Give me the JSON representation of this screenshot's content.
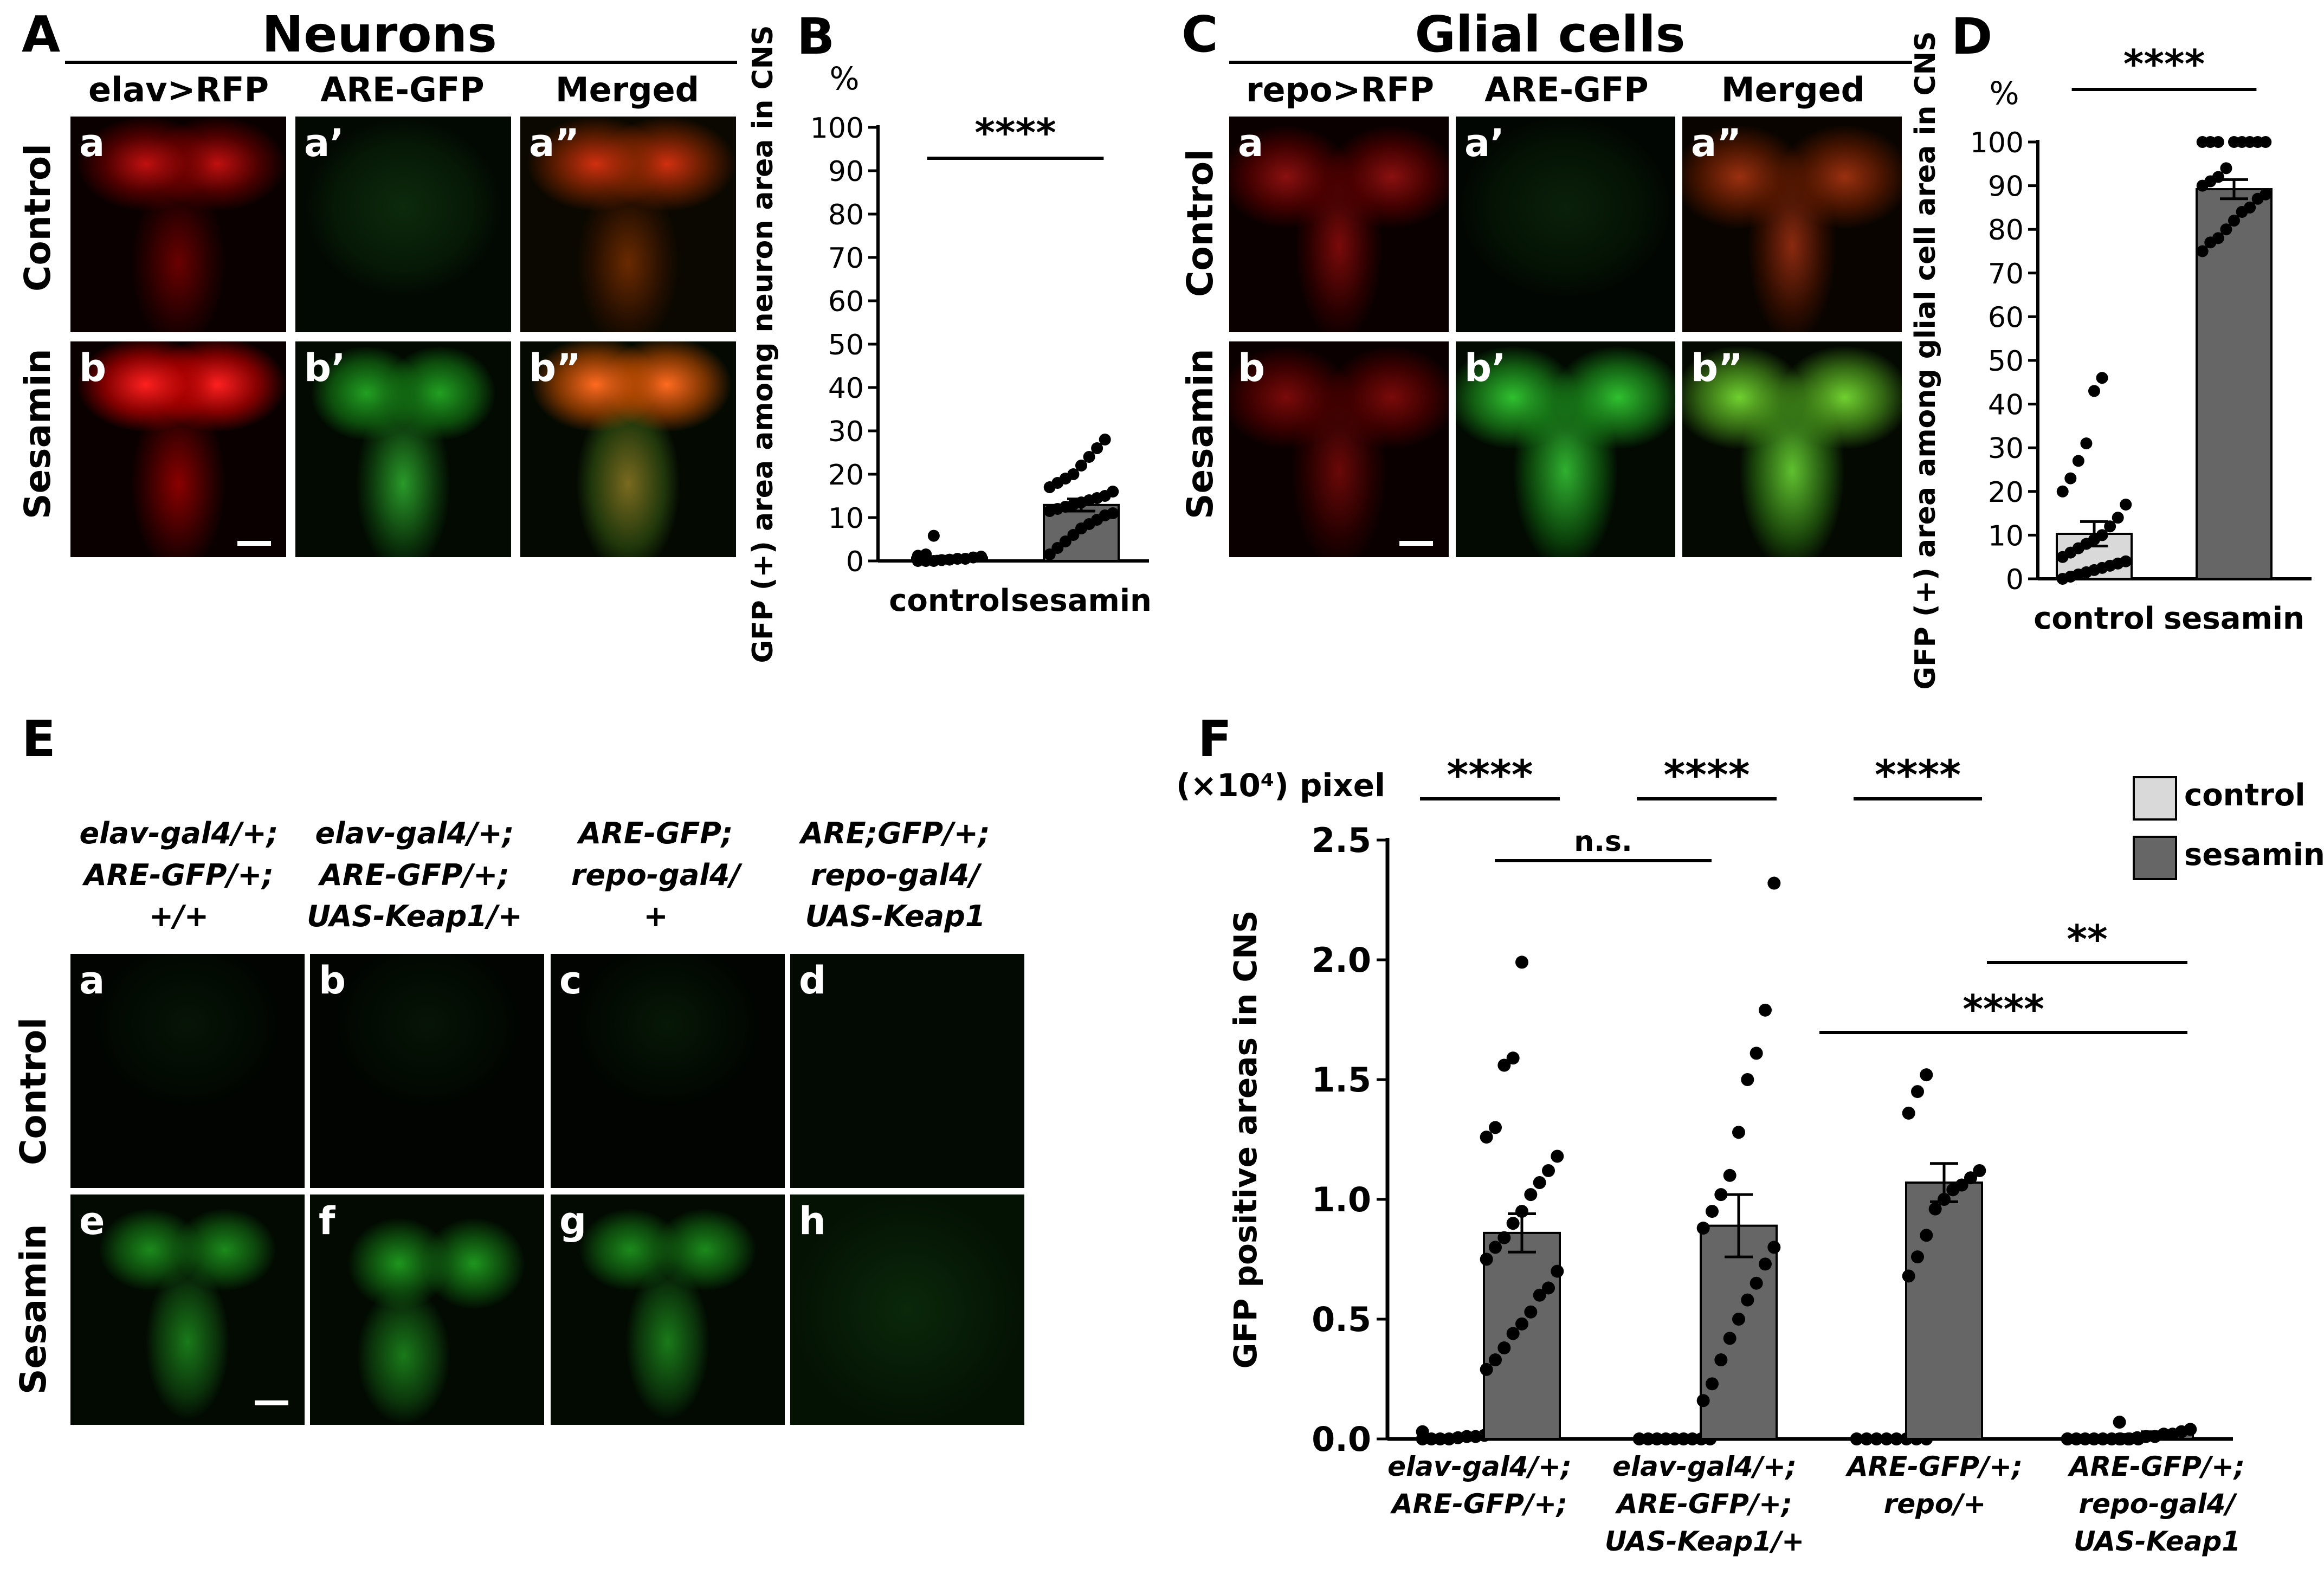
{
  "panelA": {
    "letter": "A",
    "title": "Neurons",
    "columns": [
      "elav>RFP",
      "ARE-GFP",
      "Merged"
    ],
    "rows": [
      "Control",
      "Sesamin"
    ],
    "sublabels": [
      "a",
      "a’",
      "a”",
      "b",
      "b’",
      "b”"
    ]
  },
  "panelC": {
    "letter": "C",
    "title": "Glial cells",
    "columns": [
      "repo>RFP",
      "ARE-GFP",
      "Merged"
    ],
    "rows": [
      "Control",
      "Sesamin"
    ],
    "sublabels": [
      "a",
      "a’",
      "a”",
      "b",
      "b’",
      "b”"
    ]
  },
  "panelE": {
    "letter": "E",
    "genotypes": [
      "elav-gal4/+;\nARE-GFP/+;\n+/+",
      "elav-gal4/+;\nARE-GFP/+;\nUAS-Keap1/+",
      "ARE-GFP;\nrepo-gal4/\n+",
      "ARE;GFP/+;\nrepo-gal4/\nUAS-Keap1"
    ],
    "rows": [
      "Control",
      "Sesamin"
    ],
    "sublabels": [
      "a",
      "b",
      "c",
      "d",
      "e",
      "f",
      "g",
      "h"
    ]
  },
  "colors": {
    "control_bar": "#d9d9d9",
    "sesamin_bar": "#666666",
    "rfp": "#ff2020",
    "gfp": "#30d030"
  },
  "chart_data": [
    {
      "letter": "B",
      "type": "bar",
      "categories": [
        "control",
        "sesamin"
      ],
      "values": [
        0.8,
        12.9
      ],
      "errors": [
        0.3,
        1.4
      ],
      "ylabel": "GFP (+) area among neuron area in CNS",
      "unit": "%",
      "ylim": [
        0,
        100
      ],
      "yticks": [
        0,
        10,
        20,
        30,
        40,
        50,
        60,
        70,
        80,
        90,
        100
      ],
      "significance": [
        {
          "from": 0,
          "to": 1,
          "label": "****"
        }
      ],
      "points": [
        [
          0,
          0,
          0,
          0.2,
          0.3,
          0.5,
          0.5,
          0.8,
          1.0,
          1.2,
          1.5,
          5.8
        ],
        [
          1.5,
          3,
          4.5,
          6,
          7.5,
          8.5,
          9.5,
          10.5,
          11,
          11.5,
          12,
          12.5,
          13,
          13.5,
          14,
          14.5,
          15,
          16,
          17,
          18,
          19,
          20,
          22,
          24,
          26,
          28
        ]
      ]
    },
    {
      "letter": "D",
      "type": "bar",
      "categories": [
        "control",
        "sesamin"
      ],
      "values": [
        10.3,
        89.2
      ],
      "errors": [
        2.8,
        2.2
      ],
      "ylabel": "GFP (+) area among glial cell area in CNS",
      "unit": "%",
      "ylim": [
        0,
        100
      ],
      "yticks": [
        0,
        10,
        20,
        30,
        40,
        50,
        60,
        70,
        80,
        90,
        100
      ],
      "significance": [
        {
          "from": 0,
          "to": 1,
          "label": "****"
        }
      ],
      "points": [
        [
          0,
          0.5,
          1,
          1.5,
          2,
          2.5,
          3,
          3.5,
          4,
          5,
          6,
          7,
          8,
          9,
          10,
          12,
          14,
          17,
          20,
          23,
          27,
          31,
          43,
          46
        ],
        [
          75,
          77,
          78,
          80,
          82,
          84,
          85,
          87,
          88,
          90,
          91,
          92,
          94,
          100,
          100,
          100,
          100,
          100,
          100,
          100,
          100
        ]
      ]
    },
    {
      "letter": "F",
      "type": "bar",
      "title": "",
      "unit_label": "(×10⁴) pixel",
      "ylabel": "GFP positive areas in CNS",
      "ylim": [
        0,
        2.5
      ],
      "yticks": [
        "0.0",
        "0.5",
        "1.0",
        "1.5",
        "2.0",
        "2.5"
      ],
      "legend": [
        "control",
        "sesamin"
      ],
      "groups": [
        "elav-gal4/+;\nARE-GFP/+;",
        "elav-gal4/+;\nARE-GFP/+;\nUAS-Keap1/+",
        "ARE-GFP/+;\nrepo/+",
        "ARE-GFP/+;\nrepo-gal4/\nUAS-Keap1"
      ],
      "series": [
        {
          "name": "control",
          "values": [
            0.01,
            0.003,
            0.003,
            0.003
          ]
        },
        {
          "name": "sesamin",
          "values": [
            0.86,
            0.89,
            1.07,
            0.02
          ]
        }
      ],
      "errors": {
        "control": [
          0.005,
          0.002,
          0.002,
          0.002
        ],
        "sesamin": [
          0.08,
          0.13,
          0.08,
          0.01
        ]
      },
      "points": {
        "control": [
          [
            0,
            0,
            0,
            0,
            0.005,
            0.01,
            0.01,
            0.015,
            0.02,
            0.03
          ],
          [
            0,
            0,
            0,
            0,
            0,
            0,
            0,
            0,
            0
          ],
          [
            0,
            0,
            0,
            0,
            0,
            0,
            0,
            0
          ],
          [
            0,
            0,
            0,
            0,
            0,
            0,
            0,
            0,
            0,
            0
          ]
        ],
        "sesamin": [
          [
            0.29,
            0.33,
            0.38,
            0.44,
            0.48,
            0.53,
            0.6,
            0.63,
            0.7,
            0.75,
            0.8,
            0.84,
            0.9,
            0.95,
            1.02,
            1.07,
            1.12,
            1.18,
            1.26,
            1.3,
            1.56,
            1.59,
            1.99
          ],
          [
            0.16,
            0.23,
            0.33,
            0.42,
            0.5,
            0.58,
            0.65,
            0.73,
            0.8,
            0.88,
            0.95,
            1.02,
            1.1,
            1.28,
            1.5,
            1.61,
            1.79,
            2.32
          ],
          [
            0.68,
            0.76,
            0.85,
            0.96,
            1.0,
            1.04,
            1.06,
            1.09,
            1.12,
            1.36,
            1.45,
            1.52
          ],
          [
            0,
            0,
            0.005,
            0.01,
            0.01,
            0.02,
            0.02,
            0.03,
            0.04,
            0.07
          ]
        ]
      },
      "significance": [
        {
          "label": "****",
          "kind": "pair",
          "group": 0
        },
        {
          "label": "****",
          "kind": "pair",
          "group": 1
        },
        {
          "label": "****",
          "kind": "pair",
          "group": 2
        },
        {
          "label": "n.s.",
          "kind": "span",
          "from": [
            0,
            1
          ],
          "to": [
            1,
            1
          ]
        },
        {
          "label": "**",
          "kind": "span",
          "from": [
            3,
            0
          ],
          "to": [
            3,
            1
          ]
        },
        {
          "label": "****",
          "kind": "span",
          "from": [
            2,
            1
          ],
          "to": [
            3,
            1
          ]
        }
      ]
    }
  ]
}
